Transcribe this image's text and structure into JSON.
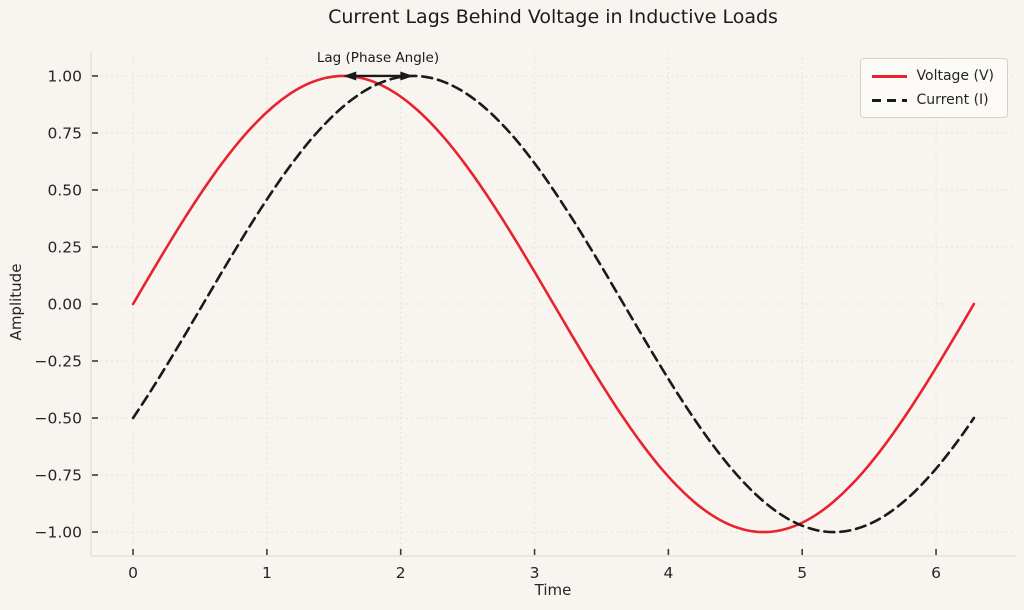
{
  "chart_data": {
    "type": "line",
    "title": "Current Lags Behind Voltage in Inductive Loads",
    "xlabel": "Time",
    "ylabel": "Amplitude",
    "xlim": [
      -0.3142,
      6.5974
    ],
    "ylim": [
      -1.105,
      1.105
    ],
    "x_ticks": [
      0,
      1,
      2,
      3,
      4,
      5,
      6
    ],
    "x_tick_labels": [
      "0",
      "1",
      "2",
      "3",
      "4",
      "5",
      "6"
    ],
    "y_ticks": [
      1.0,
      0.75,
      0.5,
      0.25,
      0.0,
      -0.25,
      -0.5,
      -0.75,
      -1.0
    ],
    "y_tick_labels": [
      "1.00",
      "0.75",
      "0.50",
      "0.25",
      "0.00",
      "−0.25",
      "−0.50",
      "−0.75",
      "−1.00"
    ],
    "grid": "faint dashed gridlines at every tick",
    "legend_position": "upper right",
    "t_start": 0,
    "t_step": 0.1308997,
    "series": [
      {
        "name": "Voltage (V)",
        "formula": "sin(t)",
        "color": "#e8232d",
        "style": "solid",
        "values": [
          0,
          0.1305,
          0.2588,
          0.3827,
          0.5,
          0.6088,
          0.7071,
          0.7934,
          0.866,
          0.9239,
          0.9659,
          0.9914,
          1,
          0.9914,
          0.9659,
          0.9239,
          0.866,
          0.7934,
          0.7071,
          0.6088,
          0.5,
          0.3827,
          0.2588,
          0.1305,
          0,
          -0.1305,
          -0.2588,
          -0.3827,
          -0.5,
          -0.6088,
          -0.7071,
          -0.7934,
          -0.866,
          -0.9239,
          -0.9659,
          -0.9914,
          -1,
          -0.9914,
          -0.9659,
          -0.9239,
          -0.866,
          -0.7934,
          -0.7071,
          -0.6088,
          -0.5,
          -0.3827,
          -0.2588,
          -0.1305,
          0
        ]
      },
      {
        "name": "Current (I)",
        "formula": "sin(t − π/6)",
        "color": "#1a1a1a",
        "style": "dashed",
        "values": [
          -0.5,
          -0.3827,
          -0.2588,
          -0.1305,
          0,
          0.1305,
          0.2588,
          0.3827,
          0.5,
          0.6088,
          0.7071,
          0.7934,
          0.866,
          0.9239,
          0.9659,
          0.9914,
          1,
          0.9914,
          0.9659,
          0.9239,
          0.866,
          0.7934,
          0.7071,
          0.6088,
          0.5,
          0.3827,
          0.2588,
          0.1305,
          0,
          -0.1305,
          -0.2588,
          -0.3827,
          -0.5,
          -0.6088,
          -0.7071,
          -0.7934,
          -0.866,
          -0.9239,
          -0.9659,
          -0.9914,
          -1,
          -0.9914,
          -0.9659,
          -0.9239,
          -0.866,
          -0.7934,
          -0.7071,
          -0.6088,
          -0.5
        ]
      }
    ],
    "annotation": {
      "text": "Lag (Phase Angle)",
      "arrow_from_t": 1.5708,
      "arrow_to_t": 2.0944,
      "arrow_y": 1.0,
      "arrow_color": "#1a1a1a"
    },
    "phase_lag_radians": 0.5236
  },
  "colors": {
    "figure_background": "#f8f5f0",
    "legend_background": "#fcfaf6",
    "legend_border": "#d5cfc6",
    "grid": "#ddd0c8",
    "spine": "#e5dad2",
    "text": "#262626",
    "voltage_line": "#e8232d",
    "current_line": "#1a1a1a"
  }
}
